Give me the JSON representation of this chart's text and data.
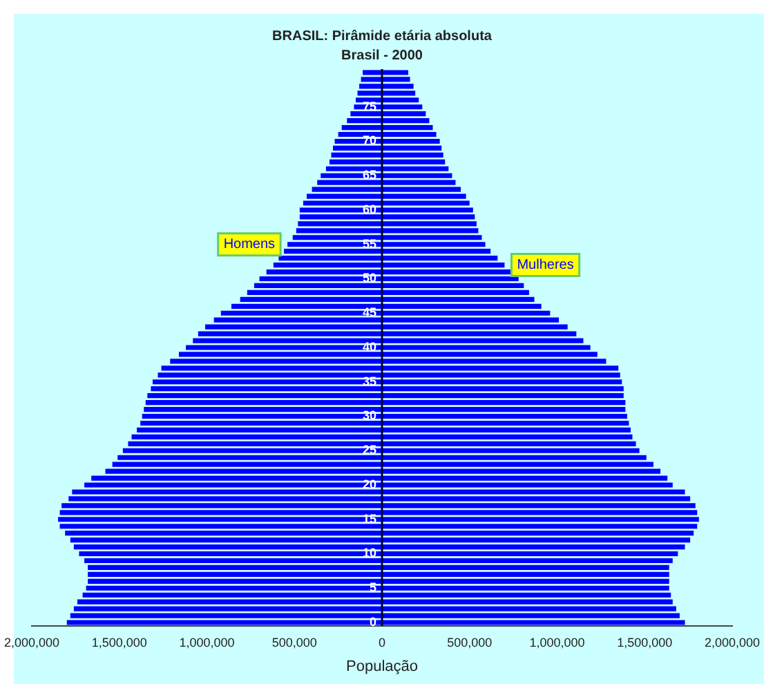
{
  "chart_data": {
    "type": "bar",
    "orientation": "horizontal",
    "title": "BRASIL: Pirâmide etária absoluta",
    "subtitle": "Brasil - 2000",
    "xlabel": "População",
    "stacked": true,
    "categories": [
      null,
      null,
      null,
      null,
      null,
      "75",
      null,
      null,
      null,
      null,
      "70",
      null,
      null,
      null,
      null,
      "65",
      null,
      null,
      null,
      null,
      "60",
      null,
      null,
      null,
      null,
      "55",
      null,
      null,
      null,
      null,
      "50",
      null,
      null,
      null,
      null,
      "45",
      null,
      null,
      null,
      null,
      "40",
      null,
      null,
      null,
      null,
      "35",
      null,
      null,
      null,
      null,
      "30",
      null,
      null,
      null,
      null,
      "25",
      null,
      null,
      null,
      null,
      "20",
      null,
      null,
      null,
      null,
      "15",
      null,
      null,
      null,
      null,
      "10",
      null,
      null,
      null,
      null,
      "5",
      null,
      null,
      null,
      null,
      "0"
    ],
    "series": [
      {
        "name": "Homens",
        "color": "#0000ff",
        "values": [
          -110000,
          -120000,
          -130000,
          -140000,
          -150000,
          -160000,
          -180000,
          -200000,
          -230000,
          -250000,
          -270000,
          -280000,
          -290000,
          -300000,
          -320000,
          -350000,
          -370000,
          -400000,
          -430000,
          -450000,
          -470000,
          -470000,
          -480000,
          -490000,
          -510000,
          -540000,
          -560000,
          -590000,
          -620000,
          -660000,
          -700000,
          -730000,
          -770000,
          -810000,
          -860000,
          -920000,
          -960000,
          -1010000,
          -1050000,
          -1080000,
          -1120000,
          -1160000,
          -1210000,
          -1260000,
          -1280000,
          -1310000,
          -1320000,
          -1340000,
          -1350000,
          -1360000,
          -1370000,
          -1380000,
          -1400000,
          -1430000,
          -1450000,
          -1480000,
          -1510000,
          -1540000,
          -1580000,
          -1660000,
          -1700000,
          -1770000,
          -1790000,
          -1830000,
          -1840000,
          -1850000,
          -1840000,
          -1810000,
          -1780000,
          -1760000,
          -1730000,
          -1700000,
          -1680000,
          -1680000,
          -1680000,
          -1690000,
          -1710000,
          -1740000,
          -1760000,
          -1780000,
          -1800000
        ]
      },
      {
        "name": "Mulheres",
        "color": "#0000ff",
        "values": [
          150000,
          160000,
          180000,
          190000,
          210000,
          230000,
          250000,
          270000,
          290000,
          310000,
          330000,
          340000,
          350000,
          360000,
          380000,
          400000,
          420000,
          450000,
          480000,
          500000,
          520000,
          530000,
          540000,
          550000,
          570000,
          590000,
          620000,
          660000,
          700000,
          740000,
          780000,
          810000,
          840000,
          870000,
          910000,
          960000,
          1010000,
          1060000,
          1110000,
          1150000,
          1190000,
          1230000,
          1280000,
          1350000,
          1360000,
          1370000,
          1380000,
          1380000,
          1390000,
          1390000,
          1400000,
          1410000,
          1420000,
          1430000,
          1450000,
          1470000,
          1510000,
          1550000,
          1590000,
          1630000,
          1660000,
          1730000,
          1760000,
          1790000,
          1800000,
          1810000,
          1800000,
          1780000,
          1760000,
          1730000,
          1690000,
          1660000,
          1640000,
          1640000,
          1640000,
          1640000,
          1650000,
          1660000,
          1680000,
          1700000,
          1730000
        ]
      }
    ],
    "xlim": [
      -2000000,
      2000000
    ],
    "xticks": [
      {
        "value": -2000000,
        "label": "2,000,000"
      },
      {
        "value": -1500000,
        "label": "1,500,000"
      },
      {
        "value": -1000000,
        "label": "1,000,000"
      },
      {
        "value": -500000,
        "label": "500,000"
      },
      0,
      {
        "value": 500000,
        "label": "500,000"
      },
      {
        "value": 1000000,
        "label": "1,000,000"
      },
      {
        "value": 1500000,
        "label": "1,500,000"
      },
      {
        "value": 2000000,
        "label": "2,000,000"
      }
    ],
    "grid": false,
    "legend": false
  }
}
